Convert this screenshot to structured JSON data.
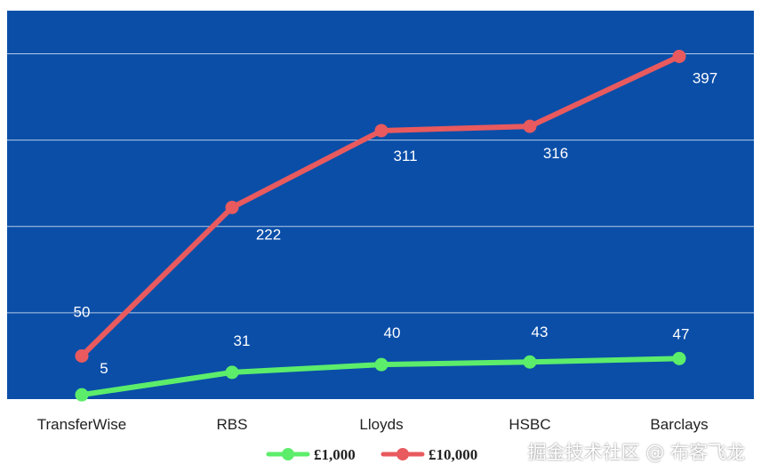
{
  "chart_data": {
    "type": "line",
    "categories": [
      "TransferWise",
      "RBS",
      "Lloyds",
      "HSBC",
      "Barclays"
    ],
    "series": [
      {
        "name": "£1,000",
        "values": [
          5,
          31,
          40,
          43,
          47
        ],
        "color": "#5ced6b"
      },
      {
        "name": "£10,000",
        "values": [
          50,
          222,
          311,
          316,
          397
        ],
        "color": "#e85a5e"
      }
    ],
    "ylim": [
      0,
      450
    ],
    "y_gridlines": [
      100,
      200,
      300,
      400
    ],
    "grid": true,
    "legend": "bottom",
    "plot_background": "#0a4ea8",
    "gridline_color": "#b7cbe6",
    "data_label_color": "#ffffff"
  },
  "watermark": "掘金技术社区 @ 布客飞龙"
}
